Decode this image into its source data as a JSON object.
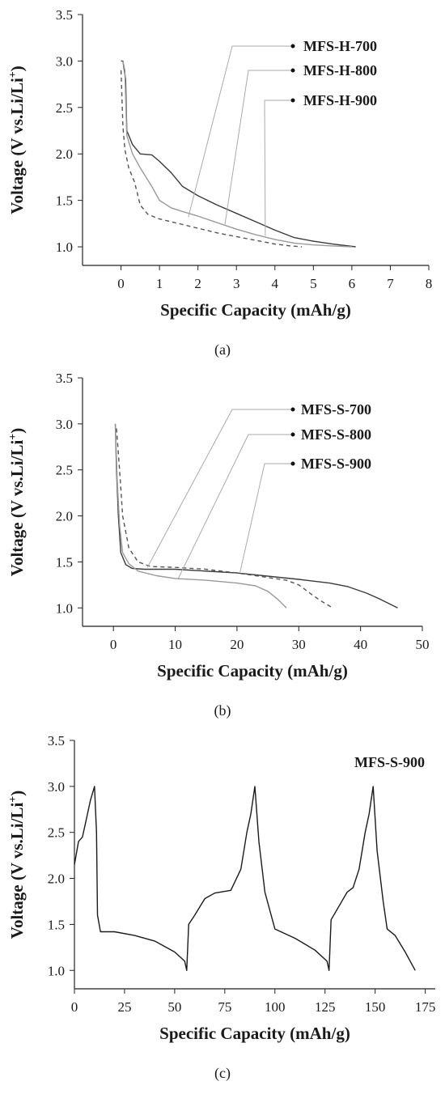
{
  "chart_data": [
    {
      "type": "line",
      "caption": "(a)",
      "xlabel": "Specific Capacity (mAh/g)",
      "ylabel": "Voltage (V vs.Li/Li+)",
      "xlim": [
        -1,
        8
      ],
      "ylim": [
        0.8,
        3.5
      ],
      "xticks": [
        0,
        1,
        2,
        3,
        4,
        5,
        6,
        7,
        8
      ],
      "yticks": [
        1.0,
        1.5,
        2.0,
        2.5,
        3.0,
        3.5
      ],
      "legend_placement": "top-right",
      "series": [
        {
          "name": "MFS-H-700",
          "color": "#3a3a3a",
          "dash": "none",
          "points": [
            [
              0.0,
              3.0
            ],
            [
              0.05,
              3.0
            ],
            [
              0.12,
              2.8
            ],
            [
              0.15,
              2.25
            ],
            [
              0.3,
              2.1
            ],
            [
              0.5,
              2.0
            ],
            [
              0.8,
              1.99
            ],
            [
              1.0,
              1.92
            ],
            [
              1.3,
              1.8
            ],
            [
              1.6,
              1.65
            ],
            [
              2.0,
              1.55
            ],
            [
              2.5,
              1.45
            ],
            [
              3.0,
              1.36
            ],
            [
              3.5,
              1.27
            ],
            [
              4.0,
              1.18
            ],
            [
              4.5,
              1.1
            ],
            [
              5.0,
              1.06
            ],
            [
              5.5,
              1.03
            ],
            [
              6.1,
              1.0
            ]
          ]
        },
        {
          "name": "MFS-H-800",
          "color": "#9a9a9a",
          "dash": "none",
          "points": [
            [
              0.05,
              3.0
            ],
            [
              0.1,
              2.9
            ],
            [
              0.15,
              2.2
            ],
            [
              0.3,
              2.0
            ],
            [
              0.5,
              1.85
            ],
            [
              0.8,
              1.65
            ],
            [
              1.0,
              1.5
            ],
            [
              1.3,
              1.42
            ],
            [
              1.6,
              1.38
            ],
            [
              2.0,
              1.33
            ],
            [
              2.5,
              1.26
            ],
            [
              3.0,
              1.19
            ],
            [
              3.5,
              1.13
            ],
            [
              4.0,
              1.08
            ],
            [
              4.5,
              1.04
            ],
            [
              5.0,
              1.02
            ],
            [
              5.5,
              1.01
            ],
            [
              6.0,
              1.0
            ]
          ]
        },
        {
          "name": "MFS-H-900",
          "color": "#555555",
          "dash": "5,4",
          "points": [
            [
              0.0,
              2.9
            ],
            [
              0.05,
              2.3
            ],
            [
              0.1,
              2.05
            ],
            [
              0.2,
              1.85
            ],
            [
              0.35,
              1.7
            ],
            [
              0.5,
              1.45
            ],
            [
              0.7,
              1.35
            ],
            [
              1.0,
              1.3
            ],
            [
              1.5,
              1.25
            ],
            [
              2.0,
              1.2
            ],
            [
              2.5,
              1.15
            ],
            [
              3.0,
              1.11
            ],
            [
              3.5,
              1.07
            ],
            [
              4.0,
              1.03
            ],
            [
              4.4,
              1.01
            ],
            [
              4.7,
              1.0
            ]
          ]
        }
      ]
    },
    {
      "type": "line",
      "caption": "(b)",
      "xlabel": "Specific Capacity (mAh/g)",
      "ylabel": "Voltage (V vs.Li/Li+)",
      "xlim": [
        -5,
        50
      ],
      "ylim": [
        0.8,
        3.5
      ],
      "xticks": [
        0,
        10,
        20,
        30,
        40,
        50
      ],
      "yticks": [
        1.0,
        1.5,
        2.0,
        2.5,
        3.0,
        3.5
      ],
      "legend_placement": "top-right",
      "series": [
        {
          "name": "MFS-S-700",
          "color": "#3a3a3a",
          "dash": "none",
          "points": [
            [
              0.3,
              3.0
            ],
            [
              0.5,
              2.5
            ],
            [
              0.8,
              2.0
            ],
            [
              1.2,
              1.6
            ],
            [
              2.0,
              1.47
            ],
            [
              3.0,
              1.43
            ],
            [
              5.0,
              1.42
            ],
            [
              10.0,
              1.42
            ],
            [
              20.0,
              1.38
            ],
            [
              30.0,
              1.31
            ],
            [
              35.0,
              1.27
            ],
            [
              38.0,
              1.23
            ],
            [
              41.0,
              1.16
            ],
            [
              43.0,
              1.1
            ],
            [
              46.0,
              1.0
            ]
          ]
        },
        {
          "name": "MFS-S-800",
          "color": "#9a9a9a",
          "dash": "none",
          "points": [
            [
              0.3,
              3.0
            ],
            [
              0.6,
              2.4
            ],
            [
              1.0,
              1.9
            ],
            [
              1.5,
              1.6
            ],
            [
              2.5,
              1.48
            ],
            [
              4.0,
              1.4
            ],
            [
              7.0,
              1.35
            ],
            [
              10.0,
              1.32
            ],
            [
              15.0,
              1.3
            ],
            [
              20.0,
              1.27
            ],
            [
              23.0,
              1.24
            ],
            [
              25.0,
              1.18
            ],
            [
              26.5,
              1.1
            ],
            [
              28.0,
              1.0
            ]
          ]
        },
        {
          "name": "MFS-S-900",
          "color": "#555555",
          "dash": "5,4",
          "points": [
            [
              0.5,
              2.95
            ],
            [
              1.0,
              2.5
            ],
            [
              1.5,
              2.0
            ],
            [
              2.5,
              1.65
            ],
            [
              4.0,
              1.5
            ],
            [
              6.0,
              1.45
            ],
            [
              10.0,
              1.44
            ],
            [
              15.0,
              1.42
            ],
            [
              20.0,
              1.38
            ],
            [
              25.0,
              1.33
            ],
            [
              28.0,
              1.3
            ],
            [
              30.0,
              1.25
            ],
            [
              32.0,
              1.15
            ],
            [
              33.5,
              1.08
            ],
            [
              35.5,
              1.0
            ]
          ]
        }
      ]
    },
    {
      "type": "line",
      "caption": "(c)",
      "xlabel": "Specific Capacity (mAh/g)",
      "ylabel": "Voltage (V vs.Li/Li+)",
      "xlim": [
        0,
        180
      ],
      "ylim": [
        0.8,
        3.5
      ],
      "xticks": [
        0,
        25,
        50,
        75,
        100,
        125,
        150,
        175
      ],
      "yticks": [
        1.0,
        1.5,
        2.0,
        2.5,
        3.0,
        3.5
      ],
      "legend_placement": "top-right",
      "series": [
        {
          "name": "MFS-S-900",
          "color": "#1a1a1a",
          "dash": "none",
          "points": [
            [
              0,
              2.15
            ],
            [
              2,
              2.4
            ],
            [
              4,
              2.45
            ],
            [
              6,
              2.65
            ],
            [
              8,
              2.85
            ],
            [
              10,
              3.0
            ],
            [
              11,
              2.5
            ],
            [
              11.5,
              1.6
            ],
            [
              13,
              1.42
            ],
            [
              20,
              1.42
            ],
            [
              30,
              1.38
            ],
            [
              40,
              1.32
            ],
            [
              50,
              1.2
            ],
            [
              55,
              1.1
            ],
            [
              56,
              1.0
            ],
            [
              57,
              1.5
            ],
            [
              60,
              1.6
            ],
            [
              65,
              1.78
            ],
            [
              70,
              1.84
            ],
            [
              78,
              1.87
            ],
            [
              83,
              2.1
            ],
            [
              86,
              2.5
            ],
            [
              88,
              2.7
            ],
            [
              90,
              3.0
            ],
            [
              92,
              2.4
            ],
            [
              95,
              1.85
            ],
            [
              100,
              1.45
            ],
            [
              110,
              1.35
            ],
            [
              120,
              1.22
            ],
            [
              126,
              1.1
            ],
            [
              127,
              1.0
            ],
            [
              128,
              1.55
            ],
            [
              132,
              1.7
            ],
            [
              136,
              1.85
            ],
            [
              139,
              1.9
            ],
            [
              142,
              2.1
            ],
            [
              145,
              2.5
            ],
            [
              147,
              2.7
            ],
            [
              149,
              3.0
            ],
            [
              151,
              2.3
            ],
            [
              154,
              1.75
            ],
            [
              156,
              1.45
            ],
            [
              160,
              1.38
            ],
            [
              165,
              1.2
            ],
            [
              170,
              1.0
            ]
          ]
        }
      ]
    }
  ]
}
